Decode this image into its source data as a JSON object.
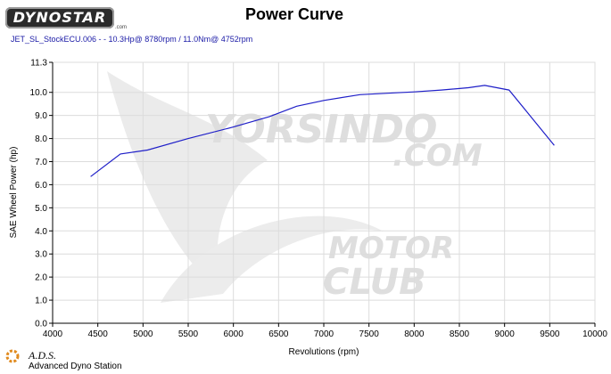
{
  "header": {
    "logo_text": "DYNOSTAR",
    "logo_suffix": ".com",
    "subtitle": "JET_SL_StockECU.006 -  - 10.3Hp@ 8780rpm / 11.0Nm@ 4752rpm"
  },
  "watermark": {
    "line1": "YORSINDO",
    "line2": ".COM",
    "line3": "MOTOR",
    "line4": "CLUB"
  },
  "footer": {
    "name": "A.D.S.",
    "subtitle": "Advanced Dyno Station"
  },
  "colors": {
    "series": "#1f1fc8",
    "grid": "#dcdcdc",
    "axis": "#000000",
    "watermark": "#d8d8d8"
  },
  "chart_data": {
    "type": "line",
    "title": "Power Curve",
    "xlabel": "Revolutions (rpm)",
    "ylabel": "SAE Wheel Power (hp)",
    "xlim": [
      4000,
      10000
    ],
    "ylim": [
      0.0,
      11.3
    ],
    "x_ticks": [
      4000,
      4500,
      5000,
      5500,
      6000,
      6500,
      7000,
      7500,
      8000,
      8500,
      9000,
      9500,
      10000
    ],
    "y_ticks": [
      0.0,
      1.0,
      2.0,
      3.0,
      4.0,
      5.0,
      6.0,
      7.0,
      8.0,
      9.0,
      10.0,
      11.3
    ],
    "y_tick_labels": [
      "0.0",
      "1.0",
      "2.0",
      "3.0",
      "4.0",
      "5.0",
      "6.0",
      "7.0",
      "8.0",
      "9.0",
      "10.0",
      "11.3"
    ],
    "grid": true,
    "series": [
      {
        "x": [
          4420,
          4750,
          5050,
          5500,
          6000,
          6400,
          6700,
          7000,
          7400,
          7800,
          8000,
          8300,
          8600,
          8780,
          9050,
          9300,
          9550
        ],
        "y": [
          6.35,
          7.33,
          7.5,
          8.0,
          8.5,
          8.95,
          9.4,
          9.65,
          9.9,
          9.98,
          10.02,
          10.1,
          10.2,
          10.3,
          10.1,
          8.9,
          7.7
        ]
      }
    ]
  }
}
